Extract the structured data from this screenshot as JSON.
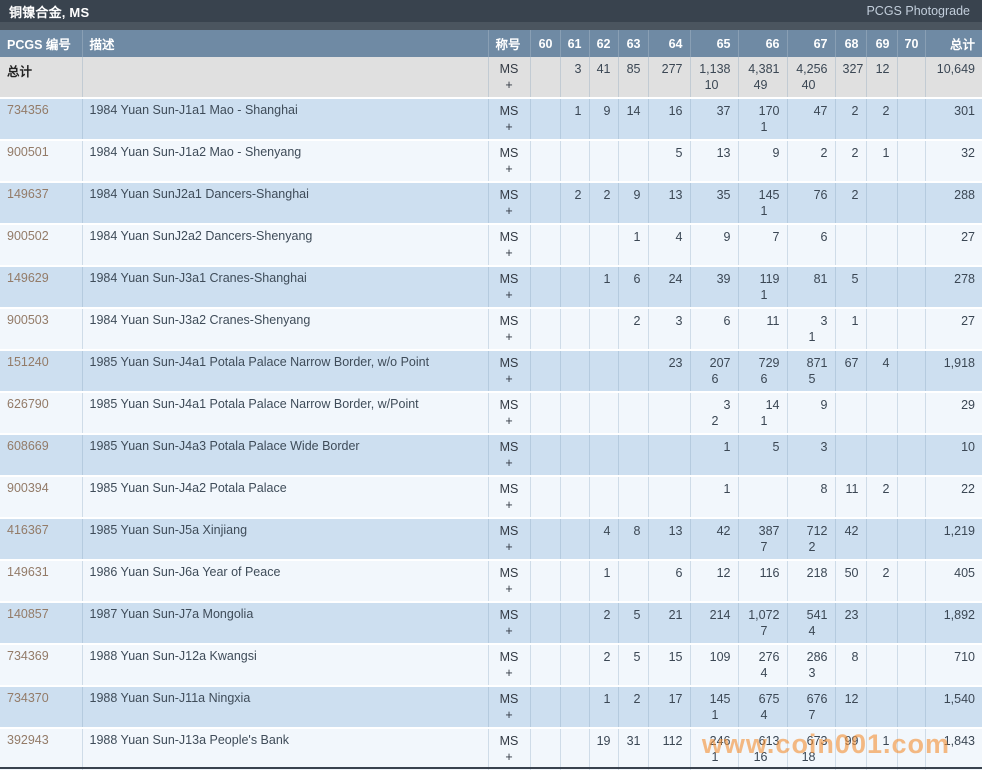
{
  "header": {
    "title": "铜镍合金, MS",
    "link_label": "PCGS Photograde"
  },
  "watermark": "www.coin001.com",
  "colors": {
    "title_bar_bg": "#39434e",
    "column_header_bg": "#6f8aa4",
    "row_blue": "#cddff0",
    "row_light": "#f2f7fc",
    "totals_row_bg": "#e0e0e0",
    "pcgs_number_text": "#937b68",
    "watermark_orange": "#f39237"
  },
  "table": {
    "columns": [
      "PCGS 编号",
      "描述",
      "称号",
      "60",
      "61",
      "62",
      "63",
      "64",
      "65",
      "66",
      "67",
      "68",
      "69",
      "70",
      "总计"
    ],
    "totals": {
      "label": "总计",
      "description": "",
      "designation": [
        "MS",
        "+"
      ],
      "grades": [
        [
          "",
          ""
        ],
        [
          "3",
          ""
        ],
        [
          "41",
          ""
        ],
        [
          "85",
          ""
        ],
        [
          "277",
          ""
        ],
        [
          "1,138",
          "10"
        ],
        [
          "4,381",
          "49"
        ],
        [
          "4,256",
          "40"
        ],
        [
          "327",
          ""
        ],
        [
          "12",
          ""
        ],
        [
          "",
          ""
        ]
      ],
      "total": "10,649"
    },
    "rows": [
      {
        "pcgs_no": "734356",
        "description": "1984 Yuan Sun-J1a1 Mao - Shanghai",
        "designation": [
          "MS",
          "+"
        ],
        "grades": [
          [
            "",
            ""
          ],
          [
            "1",
            ""
          ],
          [
            "9",
            ""
          ],
          [
            "14",
            ""
          ],
          [
            "16",
            ""
          ],
          [
            "37",
            ""
          ],
          [
            "170",
            "1"
          ],
          [
            "47",
            ""
          ],
          [
            "2",
            ""
          ],
          [
            "2",
            ""
          ],
          [
            "",
            ""
          ]
        ],
        "total": "301"
      },
      {
        "pcgs_no": "900501",
        "description": "1984 Yuan Sun-J1a2 Mao - Shenyang",
        "designation": [
          "MS",
          "+"
        ],
        "grades": [
          [
            "",
            ""
          ],
          [
            "",
            ""
          ],
          [
            "",
            ""
          ],
          [
            "",
            ""
          ],
          [
            "5",
            ""
          ],
          [
            "13",
            ""
          ],
          [
            "9",
            ""
          ],
          [
            "2",
            ""
          ],
          [
            "2",
            ""
          ],
          [
            "1",
            ""
          ],
          [
            "",
            ""
          ]
        ],
        "total": "32"
      },
      {
        "pcgs_no": "149637",
        "description": "1984 Yuan SunJ2a1 Dancers-Shanghai",
        "designation": [
          "MS",
          "+"
        ],
        "grades": [
          [
            "",
            ""
          ],
          [
            "2",
            ""
          ],
          [
            "2",
            ""
          ],
          [
            "9",
            ""
          ],
          [
            "13",
            ""
          ],
          [
            "35",
            ""
          ],
          [
            "145",
            "1"
          ],
          [
            "76",
            ""
          ],
          [
            "2",
            ""
          ],
          [
            "",
            ""
          ],
          [
            "",
            ""
          ]
        ],
        "total": "288"
      },
      {
        "pcgs_no": "900502",
        "description": "1984 Yuan SunJ2a2 Dancers-Shenyang",
        "designation": [
          "MS",
          "+"
        ],
        "grades": [
          [
            "",
            ""
          ],
          [
            "",
            ""
          ],
          [
            "",
            ""
          ],
          [
            "1",
            ""
          ],
          [
            "4",
            ""
          ],
          [
            "9",
            ""
          ],
          [
            "7",
            ""
          ],
          [
            "6",
            ""
          ],
          [
            "",
            ""
          ],
          [
            "",
            ""
          ],
          [
            "",
            ""
          ]
        ],
        "total": "27"
      },
      {
        "pcgs_no": "149629",
        "description": "1984 Yuan Sun-J3a1 Cranes-Shanghai",
        "designation": [
          "MS",
          "+"
        ],
        "grades": [
          [
            "",
            ""
          ],
          [
            "",
            ""
          ],
          [
            "1",
            ""
          ],
          [
            "6",
            ""
          ],
          [
            "24",
            ""
          ],
          [
            "39",
            ""
          ],
          [
            "119",
            "1"
          ],
          [
            "81",
            ""
          ],
          [
            "5",
            ""
          ],
          [
            "",
            ""
          ],
          [
            "",
            ""
          ]
        ],
        "total": "278"
      },
      {
        "pcgs_no": "900503",
        "description": "1984 Yuan Sun-J3a2 Cranes-Shenyang",
        "designation": [
          "MS",
          "+"
        ],
        "grades": [
          [
            "",
            ""
          ],
          [
            "",
            ""
          ],
          [
            "",
            ""
          ],
          [
            "2",
            ""
          ],
          [
            "3",
            ""
          ],
          [
            "6",
            ""
          ],
          [
            "11",
            ""
          ],
          [
            "3",
            "1"
          ],
          [
            "1",
            ""
          ],
          [
            "",
            ""
          ],
          [
            "",
            ""
          ]
        ],
        "total": "27"
      },
      {
        "pcgs_no": "151240",
        "description": "1985 Yuan Sun-J4a1 Potala Palace Narrow Border, w/o Point",
        "designation": [
          "MS",
          "+"
        ],
        "grades": [
          [
            "",
            ""
          ],
          [
            "",
            ""
          ],
          [
            "",
            ""
          ],
          [
            "",
            ""
          ],
          [
            "23",
            ""
          ],
          [
            "207",
            "6"
          ],
          [
            "729",
            "6"
          ],
          [
            "871",
            "5"
          ],
          [
            "67",
            ""
          ],
          [
            "4",
            ""
          ],
          [
            "",
            ""
          ]
        ],
        "total": "1,918"
      },
      {
        "pcgs_no": "626790",
        "description": "1985 Yuan Sun-J4a1 Potala Palace Narrow Border, w/Point",
        "designation": [
          "MS",
          "+"
        ],
        "grades": [
          [
            "",
            ""
          ],
          [
            "",
            ""
          ],
          [
            "",
            ""
          ],
          [
            "",
            ""
          ],
          [
            "",
            ""
          ],
          [
            "3",
            "2"
          ],
          [
            "14",
            "1"
          ],
          [
            "9",
            ""
          ],
          [
            "",
            ""
          ],
          [
            "",
            ""
          ],
          [
            "",
            ""
          ]
        ],
        "total": "29"
      },
      {
        "pcgs_no": "608669",
        "description": "1985 Yuan Sun-J4a3 Potala Palace Wide Border",
        "designation": [
          "MS",
          "+"
        ],
        "grades": [
          [
            "",
            ""
          ],
          [
            "",
            ""
          ],
          [
            "",
            ""
          ],
          [
            "",
            ""
          ],
          [
            "",
            ""
          ],
          [
            "1",
            ""
          ],
          [
            "5",
            ""
          ],
          [
            "3",
            ""
          ],
          [
            "",
            ""
          ],
          [
            "",
            ""
          ],
          [
            "",
            ""
          ]
        ],
        "total": "10"
      },
      {
        "pcgs_no": "900394",
        "description": "1985 Yuan Sun-J4a2 Potala Palace",
        "designation": [
          "MS",
          "+"
        ],
        "grades": [
          [
            "",
            ""
          ],
          [
            "",
            ""
          ],
          [
            "",
            ""
          ],
          [
            "",
            ""
          ],
          [
            "",
            ""
          ],
          [
            "1",
            ""
          ],
          [
            "",
            ""
          ],
          [
            "8",
            ""
          ],
          [
            "11",
            ""
          ],
          [
            "2",
            ""
          ],
          [
            "",
            ""
          ]
        ],
        "total": "22"
      },
      {
        "pcgs_no": "416367",
        "description": "1985 Yuan Sun-J5a Xinjiang",
        "designation": [
          "MS",
          "+"
        ],
        "grades": [
          [
            "",
            ""
          ],
          [
            "",
            ""
          ],
          [
            "4",
            ""
          ],
          [
            "8",
            ""
          ],
          [
            "13",
            ""
          ],
          [
            "42",
            ""
          ],
          [
            "387",
            "7"
          ],
          [
            "712",
            "2"
          ],
          [
            "42",
            ""
          ],
          [
            "",
            ""
          ],
          [
            "",
            ""
          ]
        ],
        "total": "1,219"
      },
      {
        "pcgs_no": "149631",
        "description": "1986 Yuan Sun-J6a Year of Peace",
        "designation": [
          "MS",
          "+"
        ],
        "grades": [
          [
            "",
            ""
          ],
          [
            "",
            ""
          ],
          [
            "1",
            ""
          ],
          [
            "",
            ""
          ],
          [
            "6",
            ""
          ],
          [
            "12",
            ""
          ],
          [
            "116",
            ""
          ],
          [
            "218",
            ""
          ],
          [
            "50",
            ""
          ],
          [
            "2",
            ""
          ],
          [
            "",
            ""
          ]
        ],
        "total": "405"
      },
      {
        "pcgs_no": "140857",
        "description": "1987 Yuan Sun-J7a Mongolia",
        "designation": [
          "MS",
          "+"
        ],
        "grades": [
          [
            "",
            ""
          ],
          [
            "",
            ""
          ],
          [
            "2",
            ""
          ],
          [
            "5",
            ""
          ],
          [
            "21",
            ""
          ],
          [
            "214",
            ""
          ],
          [
            "1,072",
            "7"
          ],
          [
            "541",
            "4"
          ],
          [
            "23",
            ""
          ],
          [
            "",
            ""
          ],
          [
            "",
            ""
          ]
        ],
        "total": "1,892"
      },
      {
        "pcgs_no": "734369",
        "description": "1988 Yuan Sun-J12a Kwangsi",
        "designation": [
          "MS",
          "+"
        ],
        "grades": [
          [
            "",
            ""
          ],
          [
            "",
            ""
          ],
          [
            "2",
            ""
          ],
          [
            "5",
            ""
          ],
          [
            "15",
            ""
          ],
          [
            "109",
            ""
          ],
          [
            "276",
            "4"
          ],
          [
            "286",
            "3"
          ],
          [
            "8",
            ""
          ],
          [
            "",
            ""
          ],
          [
            "",
            ""
          ]
        ],
        "total": "710"
      },
      {
        "pcgs_no": "734370",
        "description": "1988 Yuan Sun-J11a Ningxia",
        "designation": [
          "MS",
          "+"
        ],
        "grades": [
          [
            "",
            ""
          ],
          [
            "",
            ""
          ],
          [
            "1",
            ""
          ],
          [
            "2",
            ""
          ],
          [
            "17",
            ""
          ],
          [
            "145",
            "1"
          ],
          [
            "675",
            "4"
          ],
          [
            "676",
            "7"
          ],
          [
            "12",
            ""
          ],
          [
            "",
            ""
          ],
          [
            "",
            ""
          ]
        ],
        "total": "1,540"
      },
      {
        "pcgs_no": "392943",
        "description": "1988 Yuan Sun-J13a People's Bank",
        "designation": [
          "MS",
          "+"
        ],
        "grades": [
          [
            "",
            ""
          ],
          [
            "",
            ""
          ],
          [
            "19",
            ""
          ],
          [
            "31",
            ""
          ],
          [
            "112",
            ""
          ],
          [
            "246",
            "1"
          ],
          [
            "613",
            "16"
          ],
          [
            "673",
            "18"
          ],
          [
            "99",
            ""
          ],
          [
            "1",
            ""
          ],
          [
            "",
            ""
          ]
        ],
        "total": "1,843"
      }
    ]
  }
}
